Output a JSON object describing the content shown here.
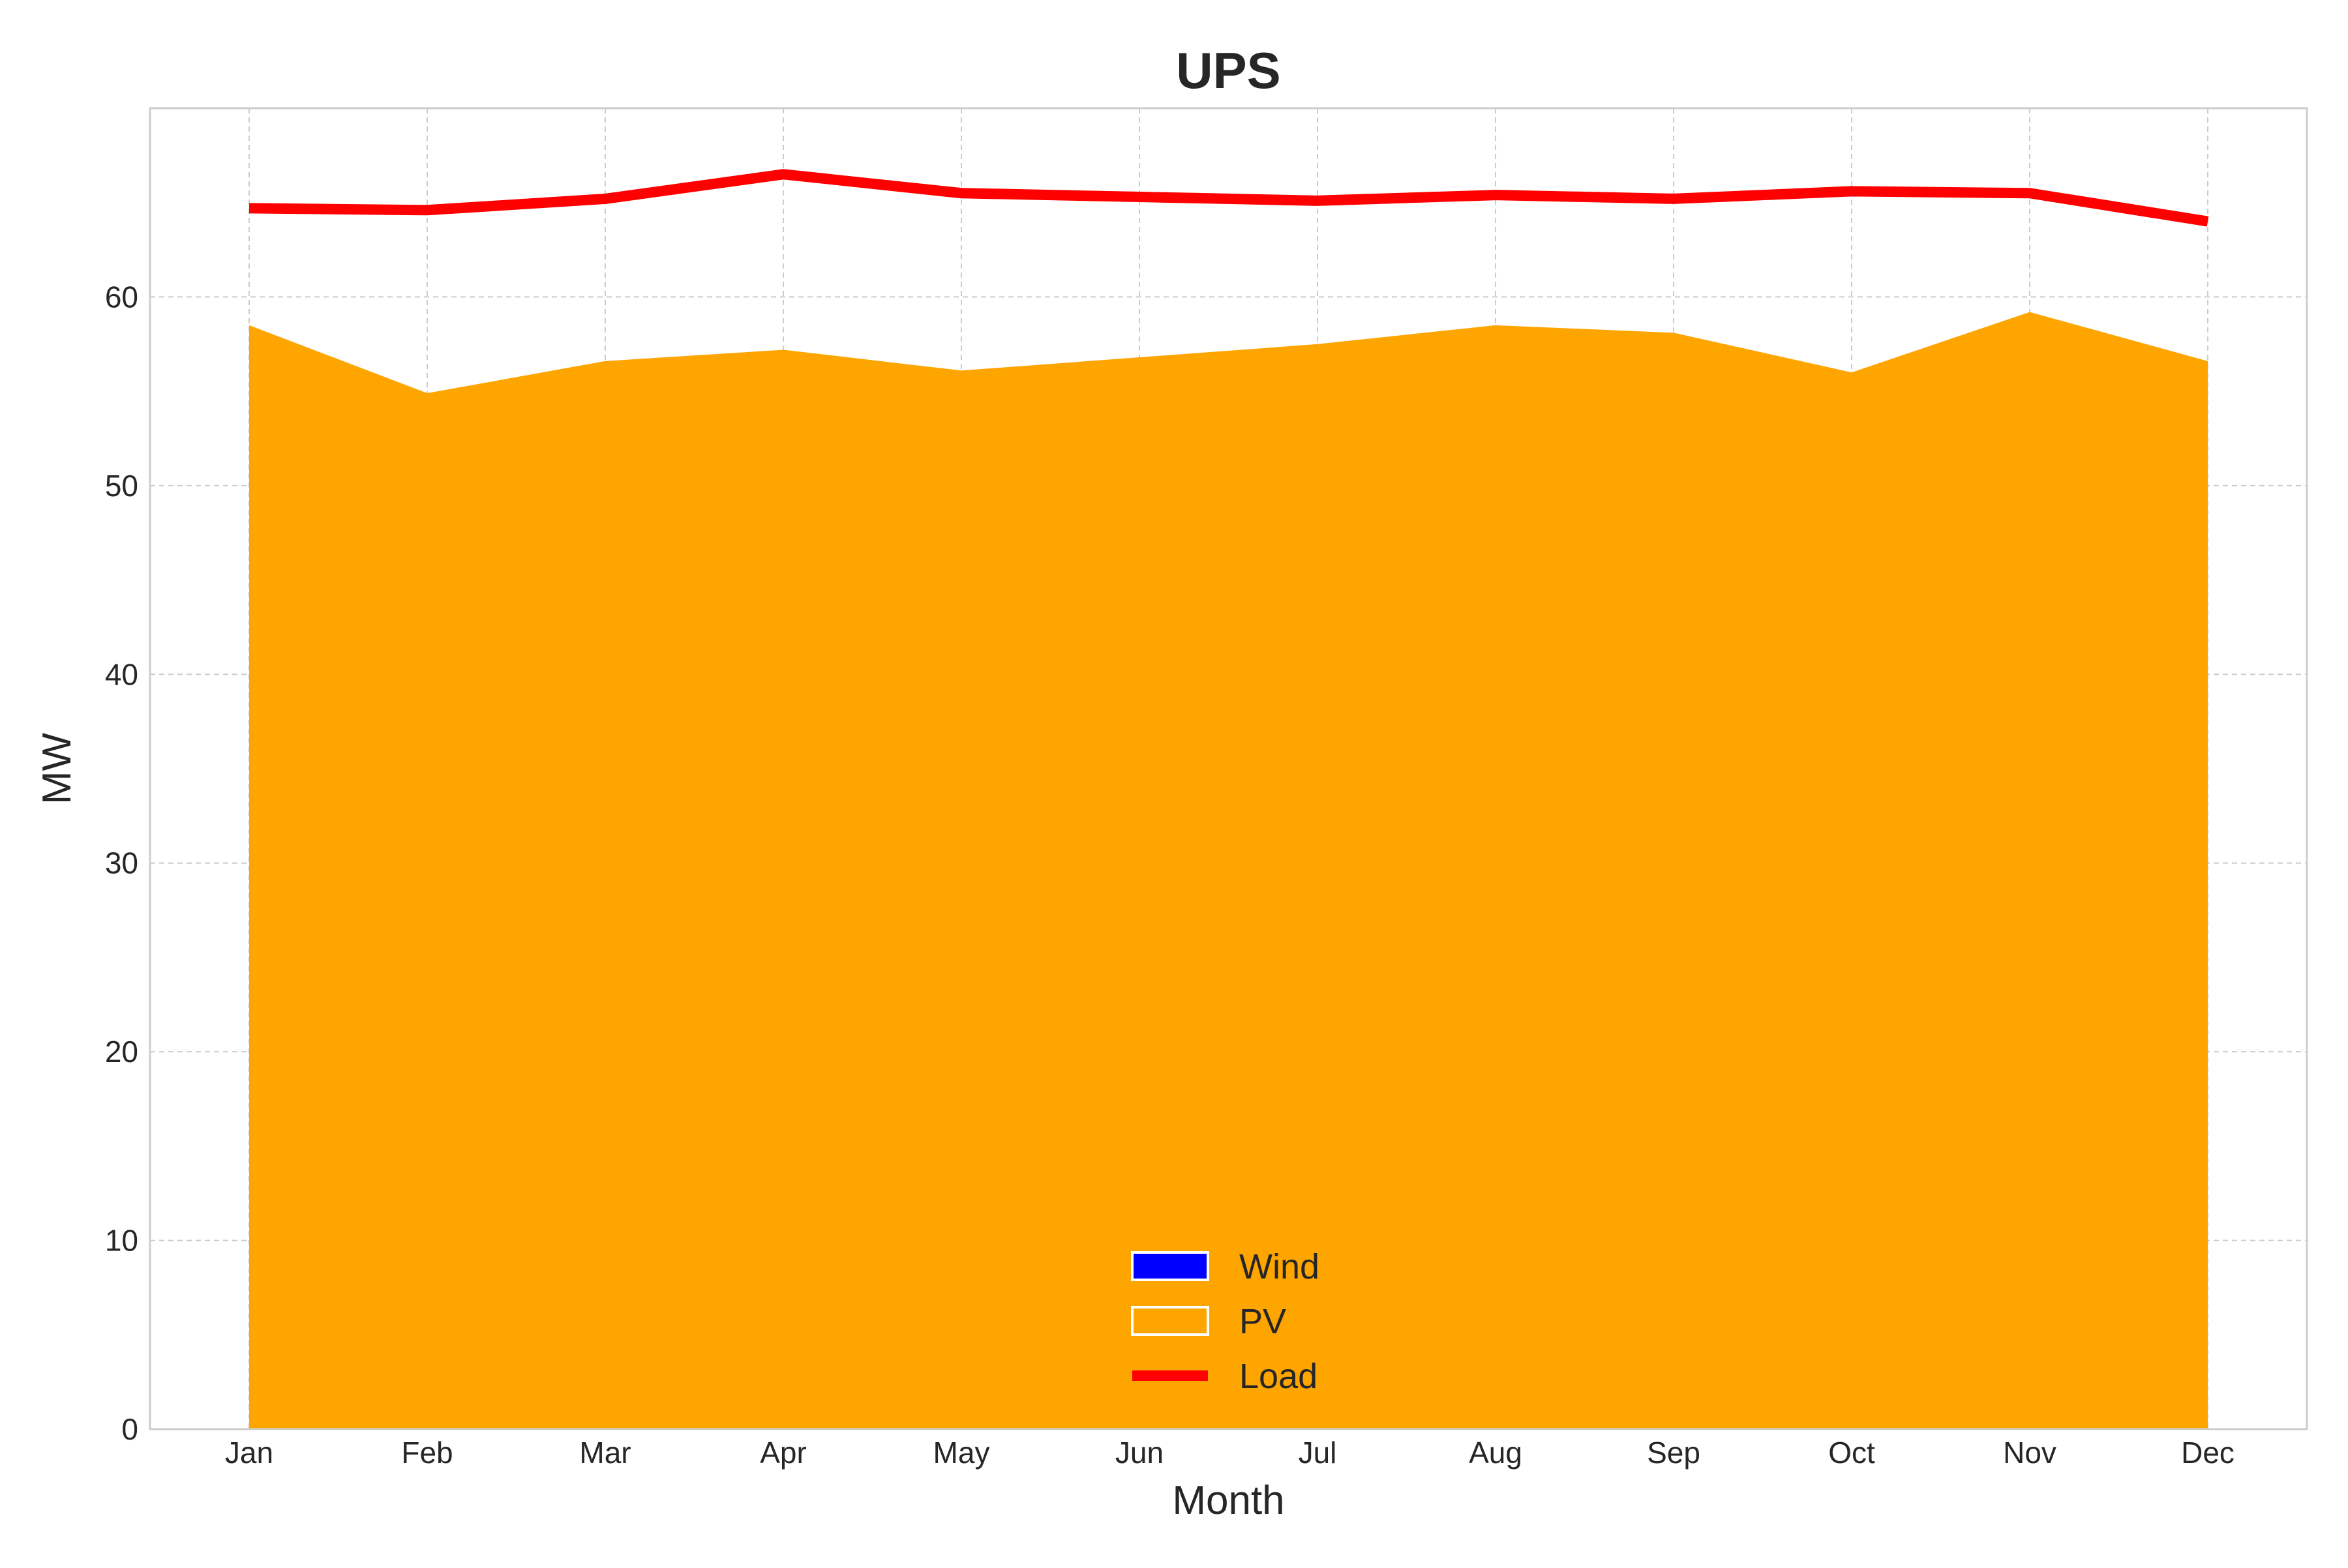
{
  "chart_data": {
    "type": "area",
    "title": "UPS",
    "xlabel": "Month",
    "ylabel": "MW",
    "categories": [
      "Jan",
      "Feb",
      "Mar",
      "Apr",
      "May",
      "Jun",
      "Jul",
      "Aug",
      "Sep",
      "Oct",
      "Nov",
      "Dec"
    ],
    "ylim": [
      0,
      70
    ],
    "yticks": [
      0,
      10,
      20,
      30,
      40,
      50,
      60
    ],
    "grid": true,
    "legend_position": "bottom-center",
    "series": [
      {
        "name": "Wind",
        "kind": "stacked-area",
        "color": "#0000ff",
        "values": [
          0,
          0,
          0,
          0,
          0,
          0,
          0,
          0,
          0,
          0,
          0,
          0
        ]
      },
      {
        "name": "PV",
        "kind": "stacked-area",
        "color": "#ffa500",
        "values": [
          58.5,
          54.9,
          56.6,
          57.2,
          56.1,
          56.8,
          57.5,
          58.5,
          58.1,
          56.0,
          59.2,
          56.6
        ]
      },
      {
        "name": "Load",
        "kind": "line",
        "color": "#ff0000",
        "values": [
          64.7,
          64.6,
          65.2,
          66.5,
          65.5,
          65.3,
          65.1,
          65.4,
          65.2,
          65.6,
          65.5,
          64.0
        ]
      }
    ]
  }
}
